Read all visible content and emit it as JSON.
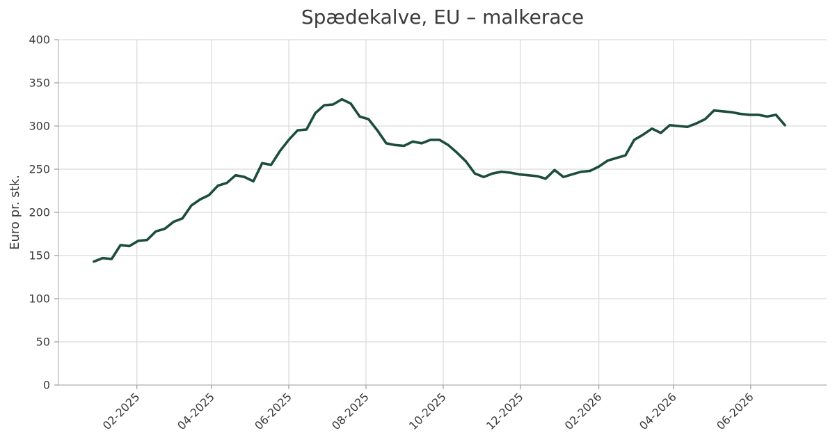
{
  "chart_data": {
    "type": "line",
    "title": "Spædekalve, EU – malkerace",
    "xlabel": "",
    "ylabel": "Euro pr. stk.",
    "ylim": [
      0,
      400
    ],
    "yticks": [
      0,
      50,
      100,
      150,
      200,
      250,
      300,
      350,
      400
    ],
    "xlim": [
      "2024-12-01",
      "2026-07-31"
    ],
    "xticks": [
      {
        "date": "2025-02-01",
        "label": "02-2025"
      },
      {
        "date": "2025-04-01",
        "label": "04-2025"
      },
      {
        "date": "2025-06-01",
        "label": "06-2025"
      },
      {
        "date": "2025-08-01",
        "label": "08-2025"
      },
      {
        "date": "2025-10-01",
        "label": "10-2025"
      },
      {
        "date": "2025-12-01",
        "label": "12-2025"
      },
      {
        "date": "2026-02-01",
        "label": "02-2026"
      },
      {
        "date": "2026-04-01",
        "label": "04-2026"
      },
      {
        "date": "2026-06-01",
        "label": "06-2026"
      }
    ],
    "grid": true,
    "color": "#1c4d3b",
    "series": [
      {
        "name": "",
        "x": [
          "2024-12-29",
          "2025-01-05",
          "2025-01-12",
          "2025-01-19",
          "2025-01-26",
          "2025-02-02",
          "2025-02-09",
          "2025-02-16",
          "2025-02-23",
          "2025-03-02",
          "2025-03-09",
          "2025-03-16",
          "2025-03-23",
          "2025-03-30",
          "2025-04-06",
          "2025-04-13",
          "2025-04-20",
          "2025-04-27",
          "2025-05-04",
          "2025-05-11",
          "2025-05-18",
          "2025-05-25",
          "2025-06-01",
          "2025-06-08",
          "2025-06-15",
          "2025-06-22",
          "2025-06-29",
          "2025-07-06",
          "2025-07-13",
          "2025-07-20",
          "2025-07-27",
          "2025-08-03",
          "2025-08-10",
          "2025-08-17",
          "2025-08-24",
          "2025-08-31",
          "2025-09-07",
          "2025-09-14",
          "2025-09-21",
          "2025-09-28",
          "2025-10-05",
          "2025-10-12",
          "2025-10-19",
          "2025-10-26",
          "2025-11-02",
          "2025-11-09",
          "2025-11-16",
          "2025-11-23",
          "2025-11-30",
          "2025-12-07",
          "2025-12-14",
          "2025-12-21",
          "2025-12-28",
          "2026-01-04",
          "2026-01-11",
          "2026-01-18",
          "2026-01-25",
          "2026-02-01",
          "2026-02-08",
          "2026-02-15",
          "2026-02-22",
          "2026-03-01",
          "2026-03-08",
          "2026-03-15",
          "2026-03-22",
          "2026-03-29",
          "2026-04-05",
          "2026-04-12",
          "2026-04-19",
          "2026-04-26",
          "2026-05-03",
          "2026-05-10",
          "2026-05-17",
          "2026-05-24",
          "2026-05-31",
          "2026-06-07",
          "2026-06-14",
          "2026-06-21",
          "2026-06-28"
        ],
        "y": [
          143,
          147,
          146,
          162,
          161,
          167,
          168,
          178,
          181,
          189,
          193,
          208,
          215,
          220,
          231,
          234,
          243,
          241,
          236,
          257,
          255,
          271,
          284,
          295,
          296,
          315,
          324,
          325,
          331,
          326,
          311,
          308,
          295,
          280,
          278,
          277,
          282,
          280,
          284,
          284,
          278,
          269,
          259,
          245,
          241,
          245,
          247,
          246,
          244,
          243,
          242,
          239,
          249,
          241,
          244,
          247,
          248,
          253,
          260,
          263,
          266,
          284,
          290,
          297,
          292,
          301,
          300,
          299,
          303,
          308,
          318,
          317,
          316,
          314,
          313,
          313,
          311,
          313,
          301
        ]
      }
    ]
  }
}
